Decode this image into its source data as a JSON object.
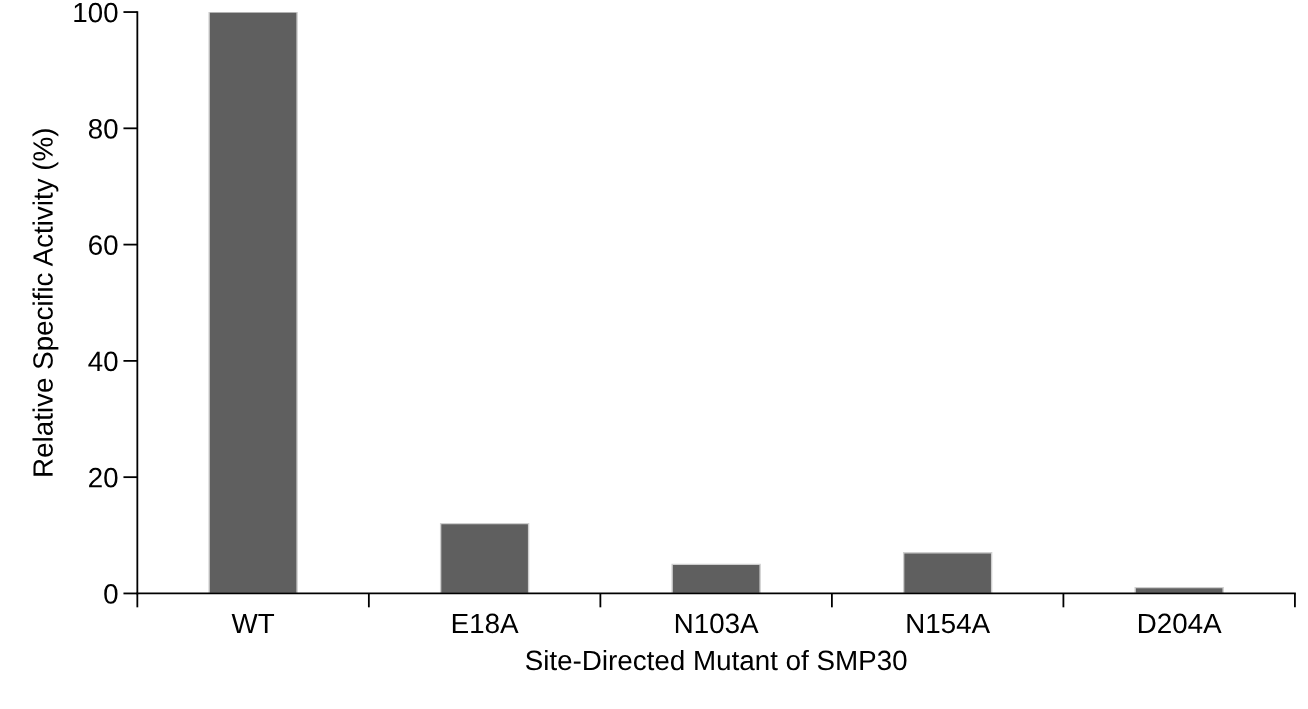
{
  "chart_data": {
    "type": "bar",
    "xlabel": "Site-Directed Mutant of SMP30",
    "ylabel": "Relative Specific Activity (%)",
    "categories": [
      "WT",
      "E18A",
      "N103A",
      "N154A",
      "D204A"
    ],
    "values": [
      100,
      12,
      5,
      7,
      1
    ],
    "color": "#5f5f5f",
    "ylim": [
      0,
      100
    ],
    "yticks": [
      0,
      20,
      40,
      60,
      80,
      100
    ],
    "grid": false
  }
}
